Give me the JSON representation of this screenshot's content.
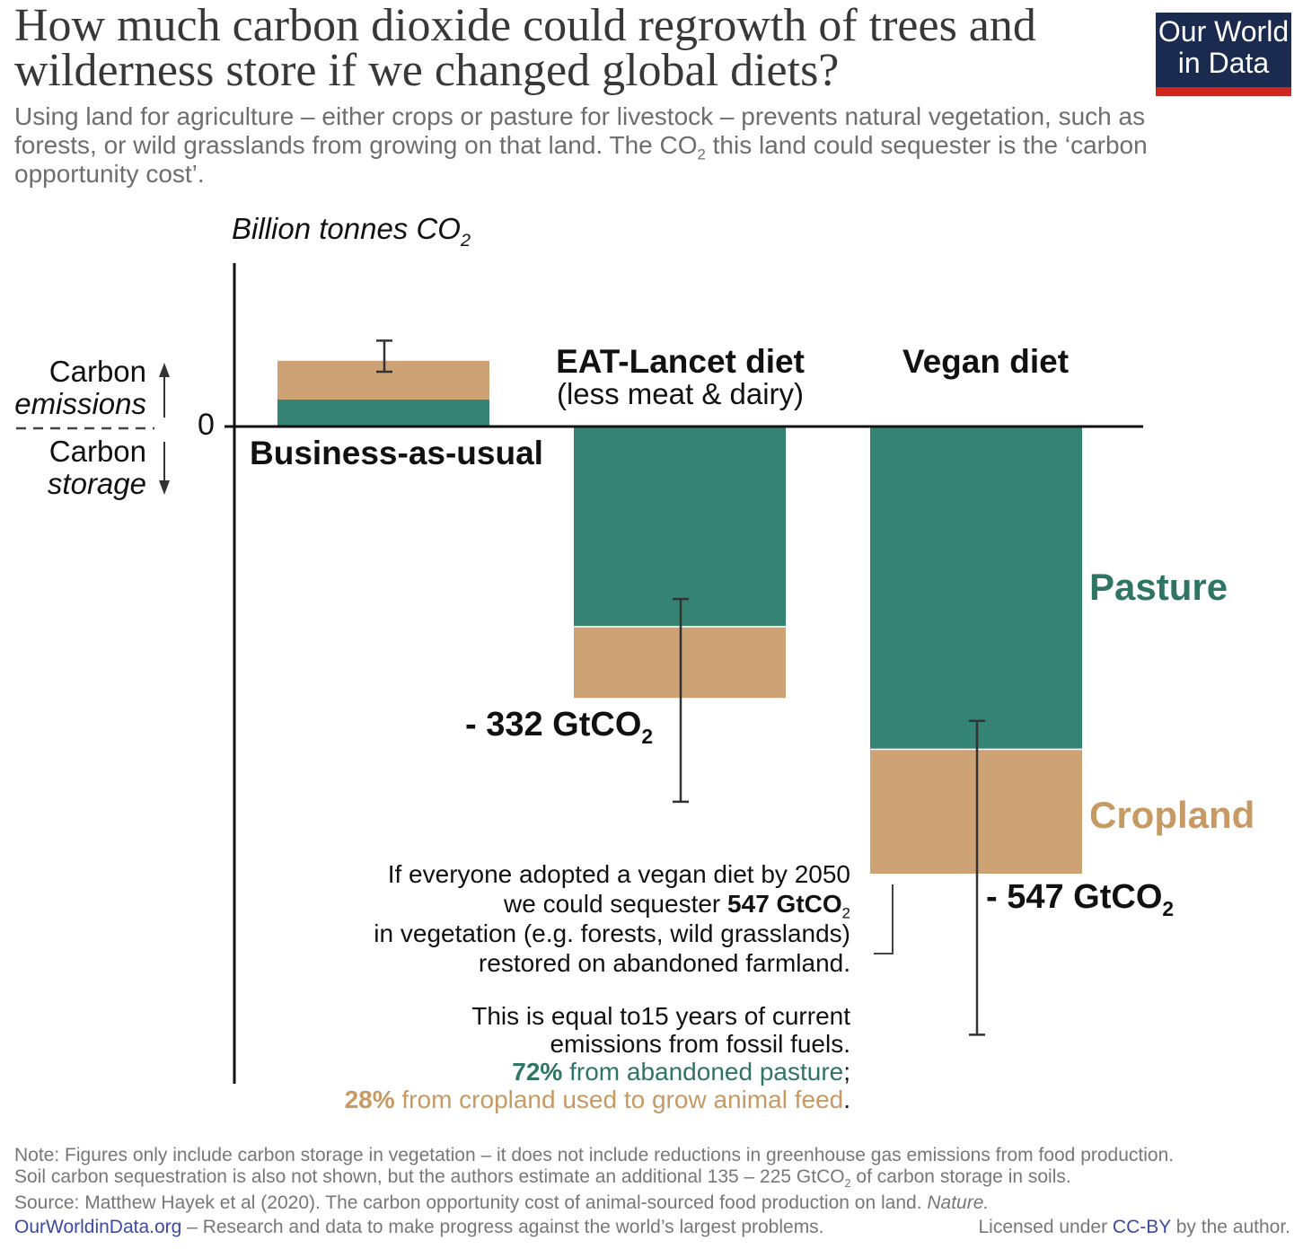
{
  "header": {
    "title": "How much carbon dioxide could regrowth of trees and wilderness store if we changed global diets?",
    "subtitle_part1": "Using land for agriculture – either crops or pasture for livestock – prevents natural vegetation, such as forests, or wild grasslands from growing on that land. The CO",
    "subtitle_sub": "2",
    "subtitle_part2": " this land could sequester is the ‘carbon opportunity cost’.",
    "logo_line1": "Our World",
    "logo_line2": "in Data"
  },
  "colors": {
    "pasture": "#358473",
    "cropland": "#cda274",
    "pasture_text": "#2f7565",
    "cropland_text": "#c69a62",
    "axis": "#111111",
    "errorbar": "#333333"
  },
  "chart_data": {
    "type": "bar",
    "stacked": true,
    "ylabel": "Billion tonnes CO",
    "ylabel_sub": "2",
    "zero_label": "0",
    "categories": [
      "Business-as-usual",
      "EAT-Lancet diet",
      "Vegan diet"
    ],
    "category_sublabels": [
      "",
      "(less meat & dairy)",
      ""
    ],
    "series": [
      {
        "name": "Pasture",
        "values": [
          33,
          -244,
          -394
        ]
      },
      {
        "name": "Cropland",
        "values": [
          49,
          -88,
          -153
        ]
      }
    ],
    "totals": [
      82,
      -332,
      -547
    ],
    "error_bars": [
      [
        67,
        105
      ],
      [
        -459,
        -211
      ],
      [
        -744,
        -360
      ]
    ],
    "value_labels": [
      "",
      "- 332 GtCO",
      "- 547 GtCO"
    ],
    "value_label_sub": "2",
    "ylim": [
      -760,
      180
    ],
    "side_labels": {
      "up_1": "Carbon",
      "up_2": "emissions",
      "down_1": "Carbon",
      "down_2": "storage"
    }
  },
  "annotation": {
    "line1": "If everyone adopted a vegan diet by 2050",
    "line2_a": "we could sequester ",
    "line2_b": "547 GtCO",
    "line2_sub": "2",
    "line3": "in vegetation (e.g. forests, wild grasslands)",
    "line4": "restored on abandoned farmland.",
    "line5": "This is equal to15 years of current",
    "line6": "emissions from fossil fuels.",
    "line7_pct": "72%",
    "line7": " from abandoned pasture",
    "line7_end": ";",
    "line8_pct": "28%",
    "line8": " from cropland used to grow animal feed",
    "line8_end": "."
  },
  "footer": {
    "note1": "Note: Figures only include carbon storage in vegetation – it does not include reductions in greenhouse gas emissions from food production.",
    "note2_a": "Soil carbon sequestration is also not shown, but the authors estimate an additional 135 – 225 GtCO",
    "note2_sub": "2",
    "note2_b": " of carbon storage in soils.",
    "source": "Source: Matthew Hayek et al (2020). The carbon opportunity cost of animal-sourced food production on land. ",
    "source_journal": "Nature.",
    "site": "OurWorldinData.org",
    "tagline": " – Research and data to make progress against the world’s largest problems.",
    "license_a": "Licensed under ",
    "license_link": "CC-BY",
    "license_b": " by the author."
  }
}
